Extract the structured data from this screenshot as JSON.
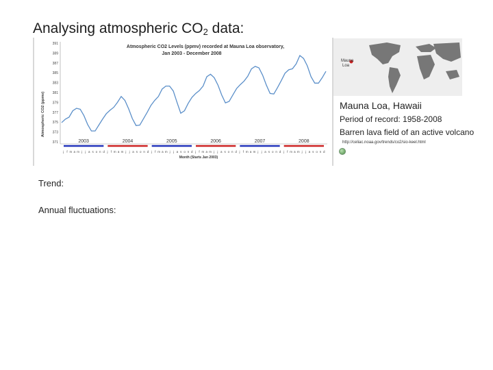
{
  "slide": {
    "title_main": "Analysing atmospheric CO",
    "title_sub": "2",
    "title_end": " data:",
    "prompt_trend": "Trend:",
    "prompt_annual": "Annual fluctuations:"
  },
  "info": {
    "location": "Mauna Loa, Hawaii",
    "period": "Period of record: 1958-2008",
    "field": "Barren lava field of an active volcano",
    "url": "http://celiac.noaa.gov/trends/co2/sio-keel.html",
    "map_label_1": "Mauna",
    "map_label_2": "Loa"
  },
  "chart_data": {
    "type": "line",
    "title": "Atmospheric CO2 Levels (ppmv) recorded at Mauna Loa observatory,",
    "subtitle": "Jan 2003 - December 2008",
    "xlabel": "Month (Starts Jan 2003)",
    "ylabel": "Atmospheric CO2 (ppmv)",
    "ylim": [
      371,
      391
    ],
    "yticks": [
      "371",
      "373",
      "375",
      "377",
      "379",
      "381",
      "383",
      "385",
      "387",
      "389",
      "391"
    ],
    "years": [
      "2003",
      "2004",
      "2005",
      "2006",
      "2007",
      "2008"
    ],
    "year_colors": [
      "#2233bb",
      "#cc2222",
      "#2233bb",
      "#cc2222",
      "#2233bb",
      "#cc2222"
    ],
    "month_letters": [
      "j",
      "f",
      "m",
      "a",
      "m",
      "j",
      "j",
      "a",
      "s",
      "o",
      "n",
      "d"
    ],
    "line_color": "#5b8fc9",
    "grid": false,
    "series": [
      {
        "values": [
          374.9,
          375.6,
          376.0,
          377.3,
          377.8,
          377.6,
          376.3,
          374.5,
          373.2,
          373.2,
          374.4,
          375.6,
          376.7,
          377.4,
          378.0,
          379.0,
          380.2,
          379.4,
          377.7,
          375.7,
          374.3,
          374.4,
          375.7,
          377.0,
          378.4,
          379.4,
          380.2,
          381.7,
          382.3,
          382.3,
          381.3,
          379.0,
          376.8,
          377.3,
          378.8,
          380.0,
          380.8,
          381.4,
          382.3,
          384.2,
          384.7,
          384.0,
          382.5,
          380.5,
          378.9,
          379.2,
          380.5,
          381.8,
          382.6,
          383.3,
          384.3,
          385.8,
          386.3,
          386.0,
          384.5,
          382.5,
          380.8,
          380.7,
          382.0,
          383.4,
          384.9,
          385.6,
          385.8,
          386.8,
          388.5,
          387.9,
          386.4,
          384.2,
          382.9,
          382.9,
          384.0,
          385.3
        ]
      }
    ]
  }
}
